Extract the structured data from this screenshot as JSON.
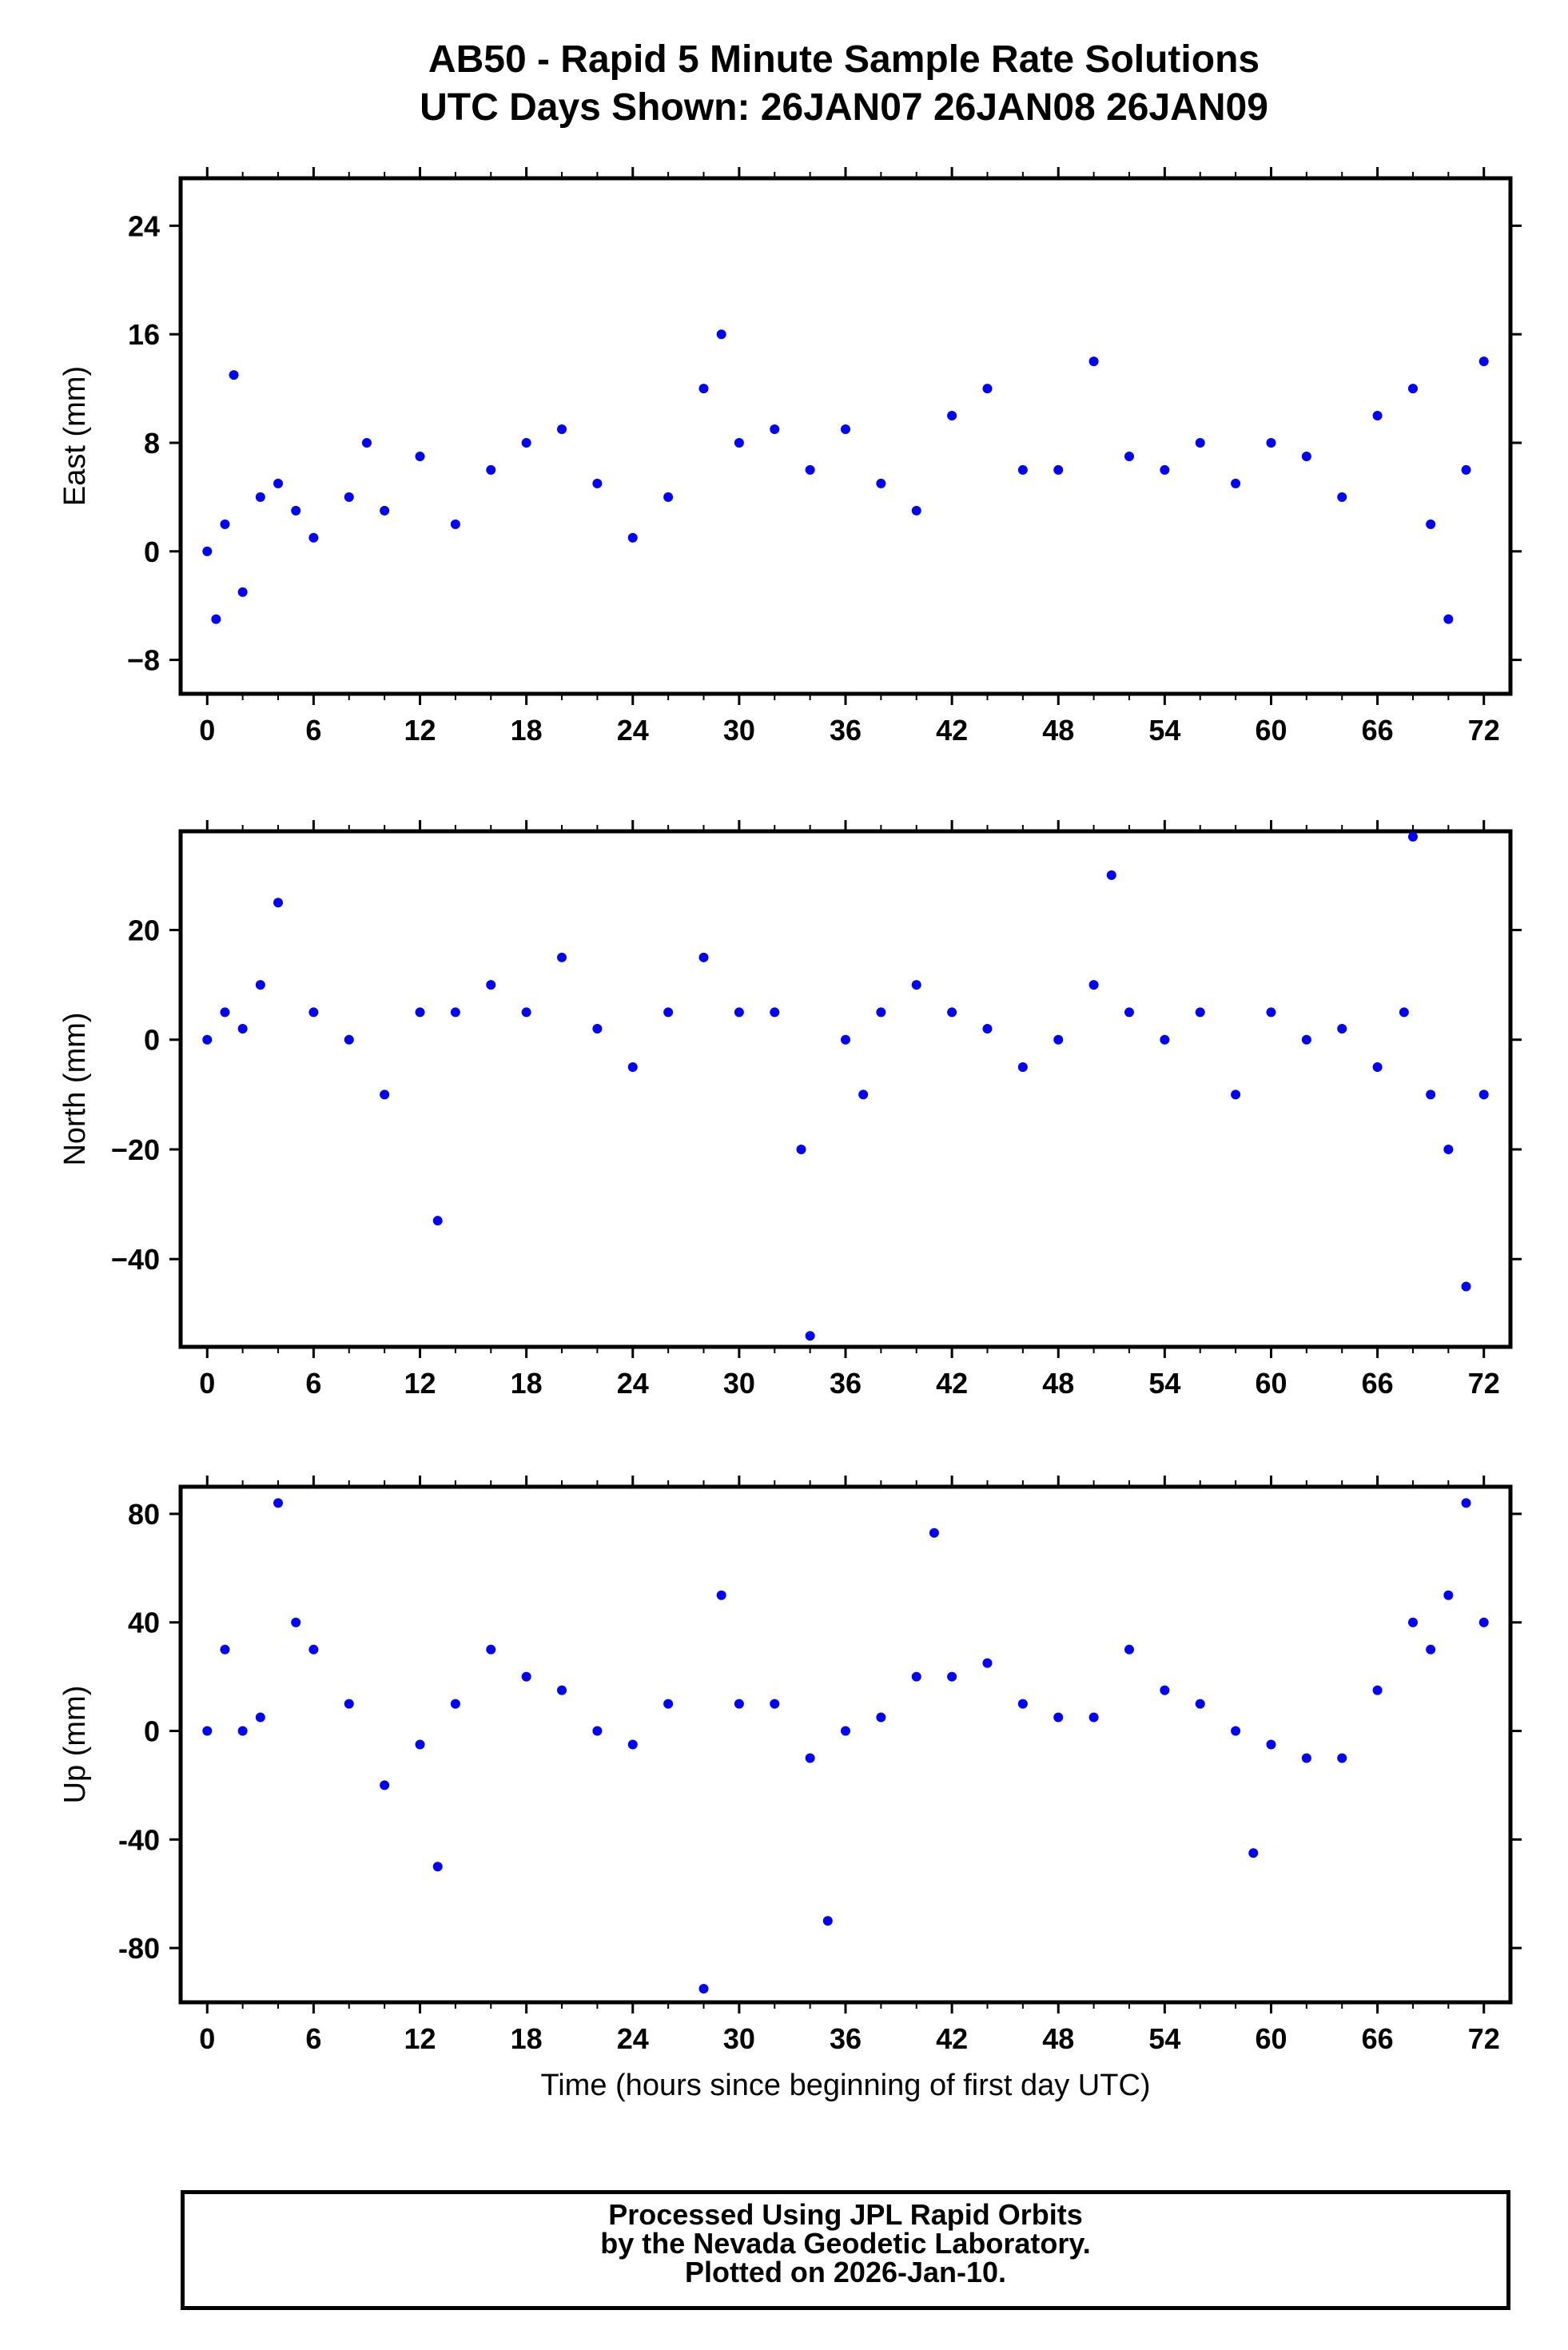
{
  "title": {
    "line1": "AB50 - Rapid 5 Minute Sample Rate Solutions",
    "line2": "UTC Days Shown:  26JAN07 26JAN08 26JAN09"
  },
  "footer": {
    "line1": "Processed Using JPL Rapid Orbits",
    "line2": "by the Nevada Geodetic Laboratory.",
    "line3": "Plotted on 2026-Jan-10."
  },
  "colors": {
    "points": "#0000ff",
    "frame": "#000000"
  },
  "chart_data": [
    {
      "type": "scatter",
      "ylabel": "East (mm)",
      "xlabel": "",
      "xlim": [
        -1.5,
        73.5
      ],
      "ylim": [
        -10.5,
        27.5
      ],
      "xticks": [
        0,
        6,
        12,
        18,
        24,
        30,
        36,
        42,
        48,
        54,
        60,
        66,
        72
      ],
      "yticks": [
        -8,
        0,
        8,
        16,
        24
      ],
      "ytick_labels": [
        "−8",
        "0",
        "8",
        "16",
        "24"
      ],
      "series": [
        {
          "x": [
            0.0,
            0.5,
            1.0,
            1.5,
            2.0,
            3.0,
            4.0,
            5.0,
            6.0,
            8.0,
            9.0,
            10.0,
            12.0,
            14.0,
            16.0,
            18.0,
            20.0,
            22.0,
            24.0,
            26.0,
            28.0,
            29.0,
            30.0,
            32.0,
            34.0,
            36.0,
            38.0,
            40.0,
            42.0,
            44.0,
            46.0,
            48.0,
            50.0,
            52.0,
            54.0,
            56.0,
            58.0,
            60.0,
            62.0,
            64.0,
            66.0,
            68.0,
            69.0,
            70.0,
            71.0,
            72.0
          ],
          "y": [
            0.0,
            -5.0,
            2.0,
            13.0,
            -3.0,
            4.0,
            5.0,
            3.0,
            1.0,
            4.0,
            8.0,
            3.0,
            7.0,
            2.0,
            6.0,
            8.0,
            9.0,
            5.0,
            1.0,
            4.0,
            12.0,
            16.0,
            8.0,
            9.0,
            6.0,
            9.0,
            5.0,
            3.0,
            10.0,
            12.0,
            6.0,
            6.0,
            14.0,
            7.0,
            6.0,
            8.0,
            5.0,
            8.0,
            7.0,
            4.0,
            10.0,
            12.0,
            2.0,
            -5.0,
            6.0,
            14.0
          ]
        }
      ]
    },
    {
      "type": "scatter",
      "ylabel": "North (mm)",
      "xlabel": "",
      "xlim": [
        -1.5,
        73.5
      ],
      "ylim": [
        -56,
        38
      ],
      "xticks": [
        0,
        6,
        12,
        18,
        24,
        30,
        36,
        42,
        48,
        54,
        60,
        66,
        72
      ],
      "yticks": [
        -40,
        -20,
        0,
        20
      ],
      "ytick_labels": [
        "−40",
        "−20",
        "0",
        "20"
      ],
      "series": [
        {
          "x": [
            0.0,
            1.0,
            2.0,
            3.0,
            4.0,
            6.0,
            8.0,
            10.0,
            12.0,
            13.0,
            14.0,
            16.0,
            18.0,
            20.0,
            22.0,
            24.0,
            26.0,
            28.0,
            30.0,
            32.0,
            33.5,
            34.0,
            36.0,
            37.0,
            38.0,
            40.0,
            42.0,
            44.0,
            46.0,
            48.0,
            50.0,
            51.0,
            52.0,
            54.0,
            56.0,
            58.0,
            60.0,
            62.0,
            64.0,
            66.0,
            67.5,
            68.0,
            69.0,
            70.0,
            71.0,
            72.0
          ],
          "y": [
            0.0,
            5.0,
            2.0,
            10.0,
            25.0,
            5.0,
            0.0,
            -10.0,
            5.0,
            -33.0,
            5.0,
            10.0,
            5.0,
            15.0,
            2.0,
            -5.0,
            5.0,
            15.0,
            5.0,
            5.0,
            -20.0,
            -54.0,
            0.0,
            -10.0,
            5.0,
            10.0,
            5.0,
            2.0,
            -5.0,
            0.0,
            10.0,
            30.0,
            5.0,
            0.0,
            5.0,
            -10.0,
            5.0,
            0.0,
            2.0,
            -5.0,
            5.0,
            37.0,
            -10.0,
            -20.0,
            -45.0,
            -10.0
          ]
        }
      ]
    },
    {
      "type": "scatter",
      "ylabel": "Up (mm)",
      "xlabel": "Time (hours since beginning of first day UTC)",
      "xlim": [
        -1.5,
        73.5
      ],
      "ylim": [
        -100,
        90
      ],
      "xticks": [
        0,
        6,
        12,
        18,
        24,
        30,
        36,
        42,
        48,
        54,
        60,
        66,
        72
      ],
      "yticks": [
        -80,
        -40,
        0,
        40,
        80
      ],
      "ytick_labels": [
        "-80",
        "-40",
        "0",
        "40",
        "80"
      ],
      "series": [
        {
          "x": [
            0.0,
            1.0,
            2.0,
            3.0,
            4.0,
            5.0,
            6.0,
            8.0,
            10.0,
            12.0,
            13.0,
            14.0,
            16.0,
            18.0,
            20.0,
            22.0,
            24.0,
            26.0,
            28.0,
            29.0,
            30.0,
            32.0,
            34.0,
            35.0,
            36.0,
            38.0,
            40.0,
            41.0,
            42.0,
            44.0,
            46.0,
            48.0,
            50.0,
            52.0,
            54.0,
            56.0,
            58.0,
            59.0,
            60.0,
            62.0,
            64.0,
            66.0,
            68.0,
            69.0,
            70.0,
            71.0,
            72.0
          ],
          "y": [
            0.0,
            30.0,
            0.0,
            5.0,
            84.0,
            40.0,
            30.0,
            10.0,
            -20.0,
            -5.0,
            -50.0,
            10.0,
            30.0,
            20.0,
            15.0,
            0.0,
            -5.0,
            10.0,
            -95.0,
            50.0,
            10.0,
            10.0,
            -10.0,
            -70.0,
            0.0,
            5.0,
            20.0,
            73.0,
            20.0,
            25.0,
            10.0,
            5.0,
            5.0,
            30.0,
            15.0,
            10.0,
            0.0,
            -45.0,
            -5.0,
            -10.0,
            -10.0,
            15.0,
            40.0,
            30.0,
            50.0,
            84.0,
            40.0
          ]
        }
      ]
    }
  ]
}
